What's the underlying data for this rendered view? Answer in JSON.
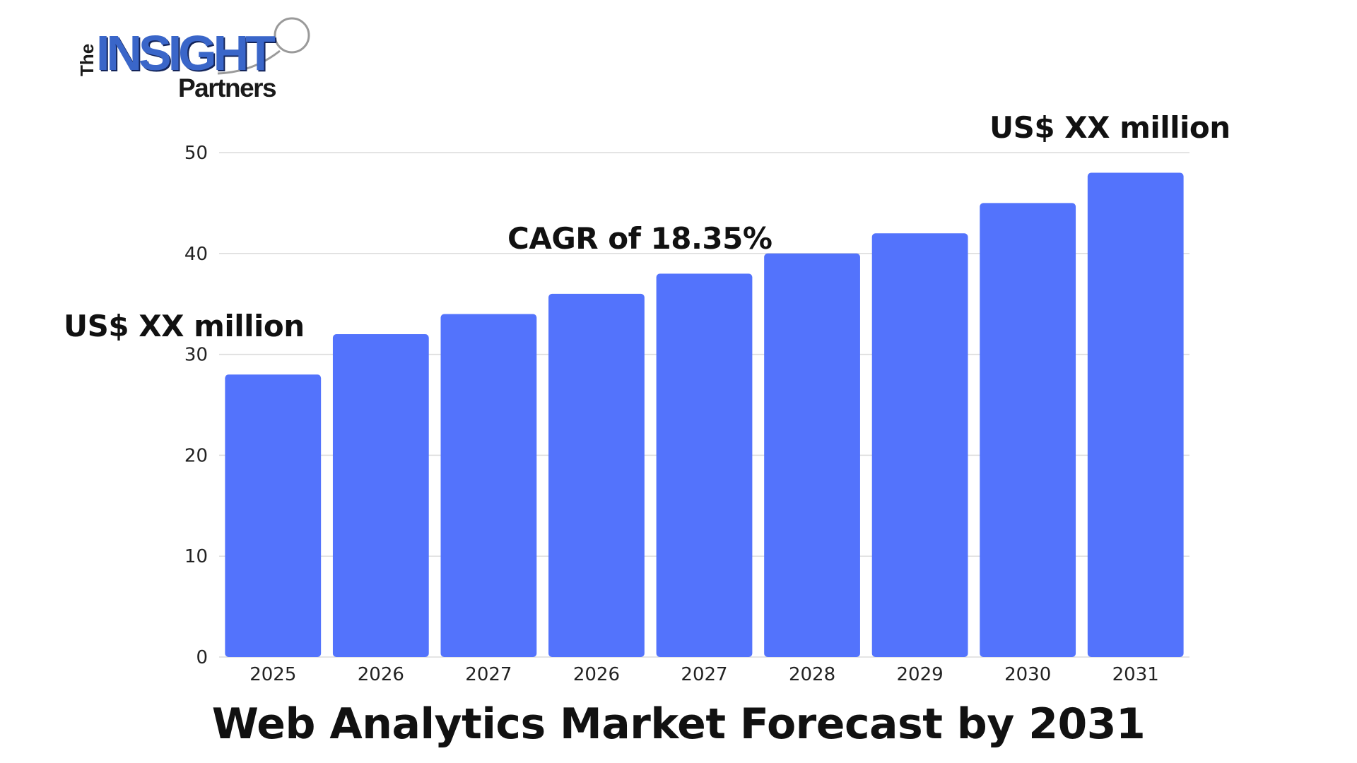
{
  "logo": {
    "prefix": "The",
    "name": "INSIGHT",
    "sub": "Partners"
  },
  "annotations": {
    "start_value": "US$ XX million",
    "cagr": "CAGR of 18.35%",
    "end_value": "US$ XX million"
  },
  "colors": {
    "bar": "#5373fc",
    "grid": "#dcdcdc",
    "logo_blue": "#3a66c9"
  },
  "chart_data": {
    "type": "bar",
    "title": "Web Analytics Market Forecast by 2031",
    "categories": [
      "2025",
      "2026",
      "2027",
      "2026",
      "2027",
      "2028",
      "2029",
      "2030",
      "2031"
    ],
    "values": [
      28,
      32,
      34,
      36,
      38,
      40,
      42,
      45,
      48
    ],
    "yticks": [
      0,
      10,
      20,
      30,
      40,
      50
    ],
    "ylim": [
      0,
      50
    ],
    "xlabel": "",
    "ylabel": "",
    "grid": true,
    "legend": "none"
  }
}
